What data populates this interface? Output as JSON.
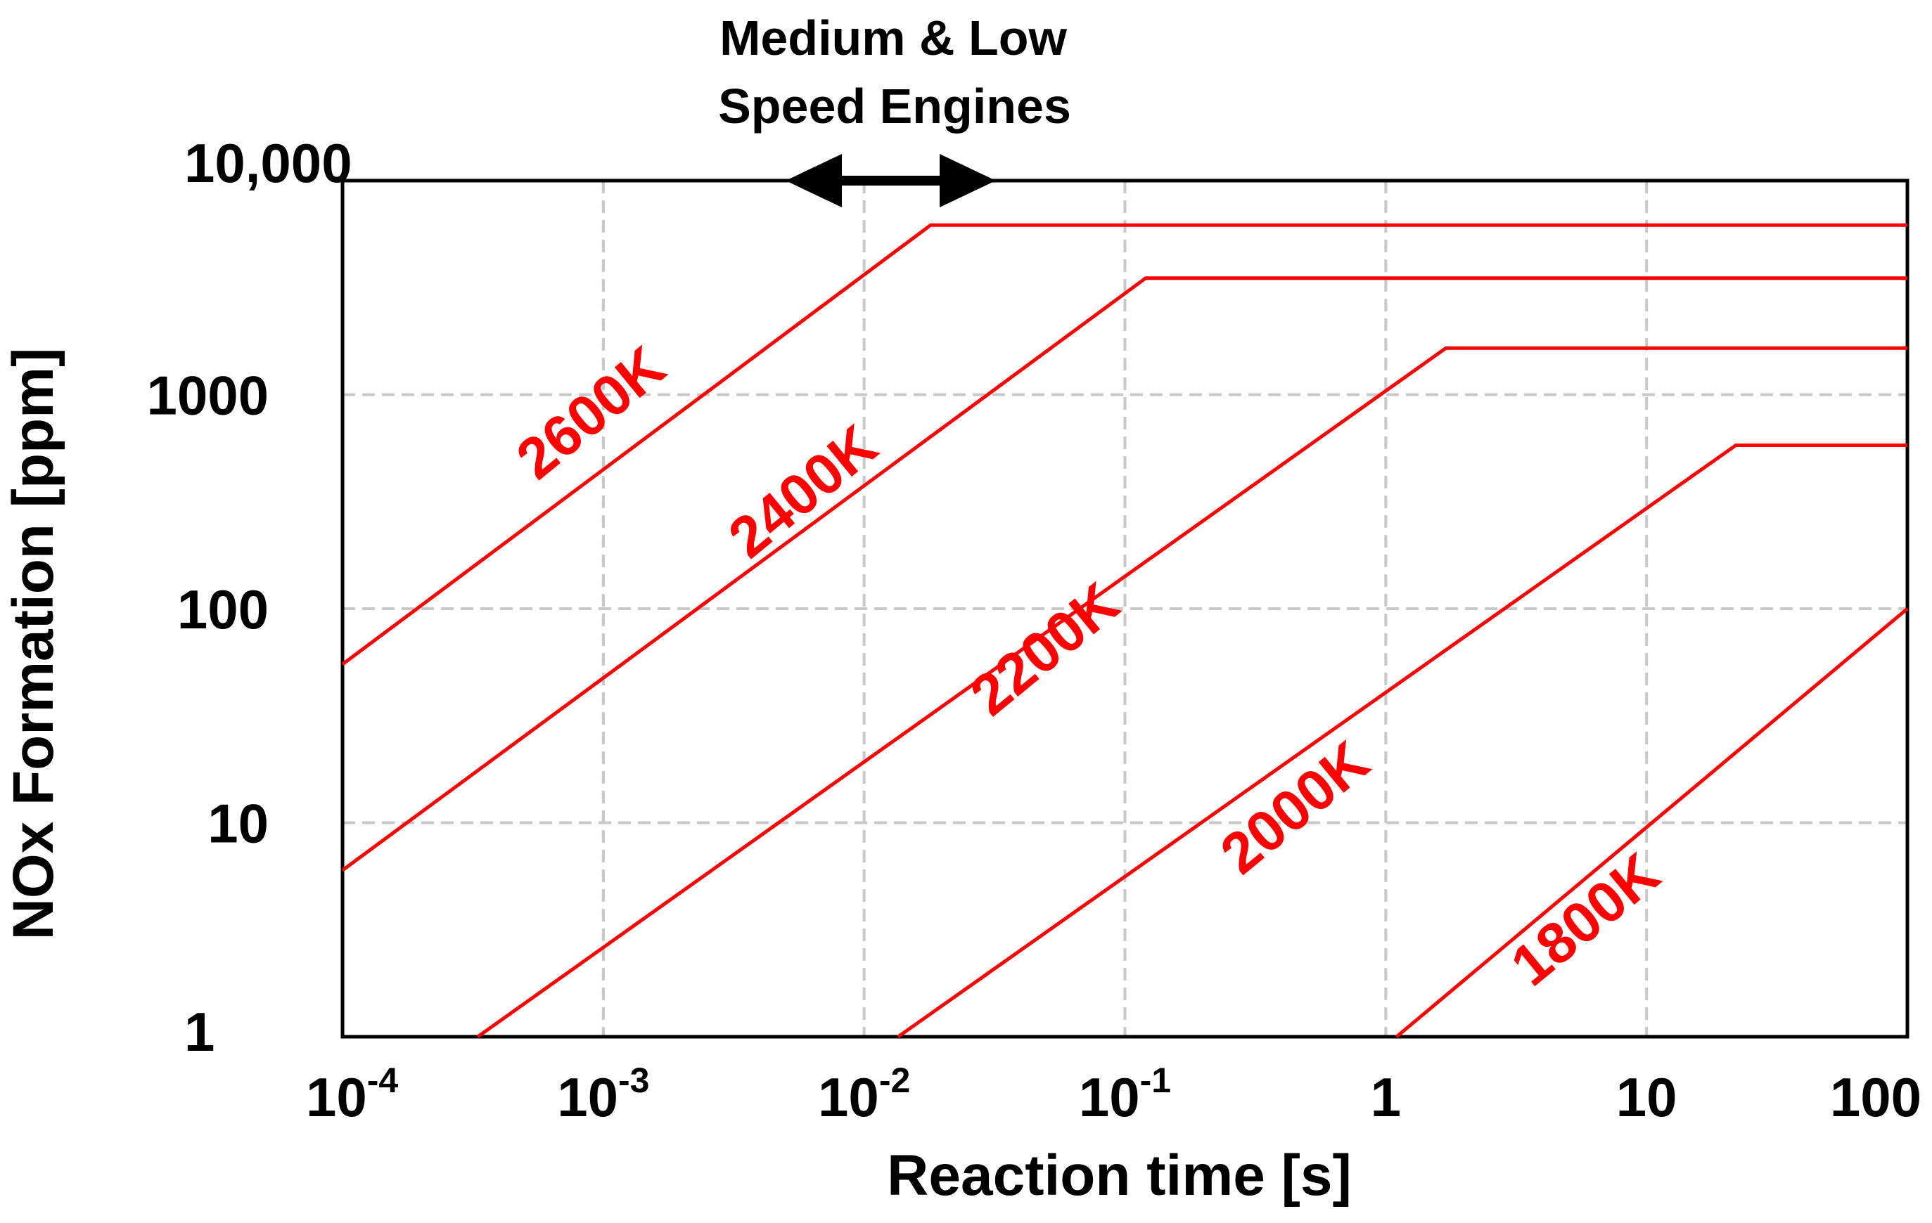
{
  "chart_data": {
    "type": "line",
    "xscale": "log",
    "yscale": "log",
    "xlim": [
      0.0001,
      100
    ],
    "ylim": [
      1,
      10000
    ],
    "xlabel": "Reaction time [s]",
    "ylabel": "NOx Formation [ppm]",
    "x_ticks": [
      {
        "base": "10",
        "exp": "-4",
        "value": 0.0001
      },
      {
        "base": "10",
        "exp": "-3",
        "value": 0.001
      },
      {
        "base": "10",
        "exp": "-2",
        "value": 0.01
      },
      {
        "base": "10",
        "exp": "-1",
        "value": 0.1
      },
      {
        "base": "1",
        "exp": "",
        "value": 1
      },
      {
        "base": "10",
        "exp": "",
        "value": 10
      },
      {
        "base": "100",
        "exp": "",
        "value": 100
      }
    ],
    "y_ticks": [
      {
        "label": "1",
        "value": 1
      },
      {
        "label": "10",
        "value": 10
      },
      {
        "label": "100",
        "value": 100
      },
      {
        "label": "1000",
        "value": 1000
      },
      {
        "label": "10,000",
        "value": 10000
      }
    ],
    "series_color": "#ff0000",
    "series": [
      {
        "name": "2600K",
        "x": [
          0.0001,
          0.018,
          100
        ],
        "y": [
          55,
          6200,
          6200
        ],
        "label_at": {
          "x": 0.001,
          "y": 700
        }
      },
      {
        "name": "2400K",
        "x": [
          0.0001,
          0.12,
          100
        ],
        "y": [
          6,
          3500,
          3500
        ],
        "label_at": {
          "x": 0.0065,
          "y": 300
        }
      },
      {
        "name": "2200K",
        "x": [
          0.00033,
          1.7,
          100
        ],
        "y": [
          1,
          1650,
          1650
        ],
        "label_at": {
          "x": 0.055,
          "y": 55
        }
      },
      {
        "name": "2000K",
        "x": [
          0.0135,
          22,
          100
        ],
        "y": [
          1,
          580,
          580
        ],
        "label_at": {
          "x": 0.5,
          "y": 10
        }
      },
      {
        "name": "1800K",
        "x": [
          1.1,
          100
        ],
        "y": [
          1,
          100
        ],
        "label_at": {
          "x": 6.5,
          "y": 3
        }
      }
    ],
    "annotation": {
      "lines": [
        "Medium & Low",
        "Speed Engines"
      ],
      "range_x": [
        0.005,
        0.032
      ]
    }
  }
}
